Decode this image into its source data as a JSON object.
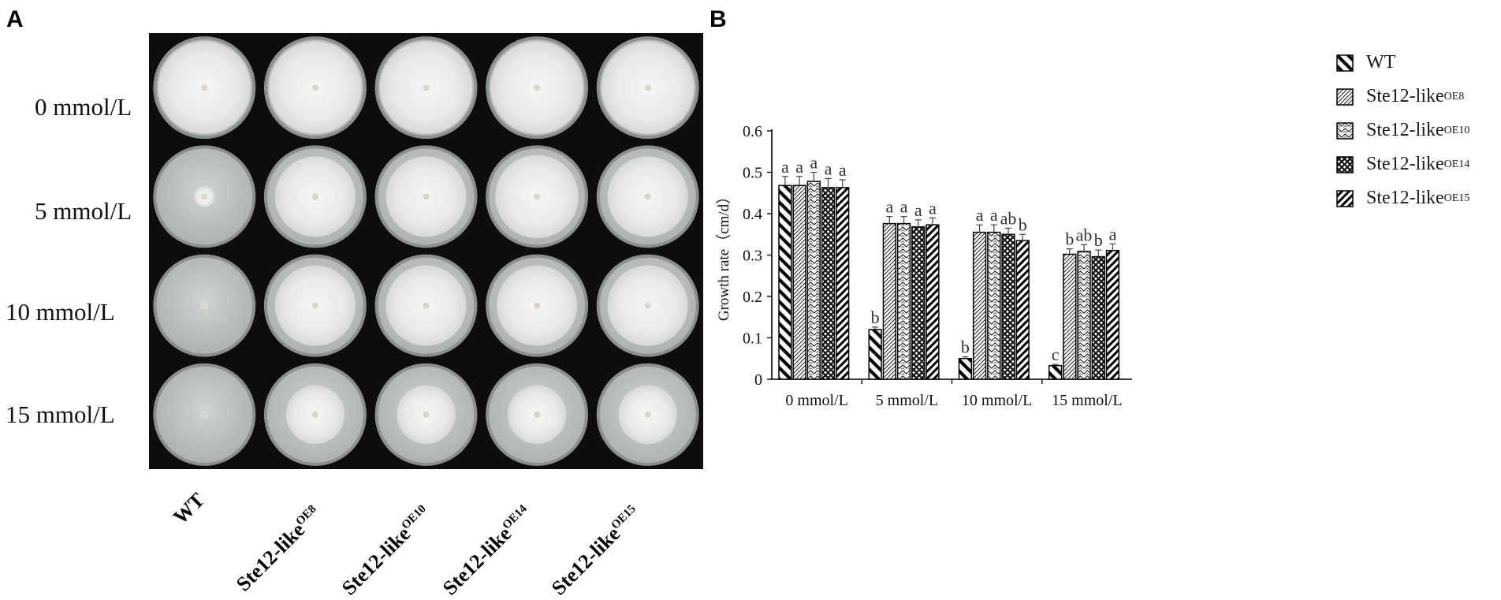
{
  "panelA": {
    "letter": "A",
    "rows": [
      "0 mmol/L",
      "5 mmol/L",
      "10 mmol/L",
      "15 mmol/L"
    ],
    "columns": [
      {
        "base": "WT",
        "sup": ""
      },
      {
        "base": "Ste12-like",
        "sup": "OE8"
      },
      {
        "base": "Ste12-like",
        "sup": "OE10"
      },
      {
        "base": "Ste12-like",
        "sup": "OE14"
      },
      {
        "base": "Ste12-like",
        "sup": "OE15"
      }
    ],
    "colony_cover_fraction": [
      [
        0.98,
        0.98,
        0.98,
        0.98,
        0.98
      ],
      [
        0.22,
        0.85,
        0.85,
        0.88,
        0.85
      ],
      [
        0.08,
        0.85,
        0.85,
        0.85,
        0.85
      ],
      [
        0.08,
        0.62,
        0.62,
        0.62,
        0.62
      ]
    ],
    "colors": {
      "background": "#0d0d0d",
      "agar": "#c4c8c7",
      "mycelium": "#ecedea"
    }
  },
  "chart_data": {
    "letter": "B",
    "type": "bar",
    "ylabel": "Growth rate（cm/d）",
    "ylim": [
      0,
      0.6
    ],
    "yticks": [
      "0",
      "0.1",
      "0.2",
      "0.3",
      "0.4",
      "0.5",
      "0.6"
    ],
    "categories": [
      "0 mmol/L",
      "5 mmol/L",
      "10 mmol/L",
      "15 mmol/L"
    ],
    "legend_position": "top-right",
    "series": [
      {
        "name": "WT",
        "sup": "",
        "pattern": "diag-back",
        "values": [
          0.468,
          0.12,
          0.05,
          0.033
        ],
        "errors": [
          0.022,
          0.006,
          0.004,
          0.003
        ],
        "letters": [
          "a",
          "b",
          "b",
          "c"
        ]
      },
      {
        "name": "Ste12-like",
        "sup": "OE8",
        "pattern": "diag-fine",
        "values": [
          0.468,
          0.376,
          0.355,
          0.302
        ],
        "errors": [
          0.022,
          0.017,
          0.018,
          0.013
        ],
        "letters": [
          "a",
          "a",
          "a",
          "b"
        ]
      },
      {
        "name": "Ste12-like",
        "sup": "OE10",
        "pattern": "wave",
        "values": [
          0.478,
          0.376,
          0.355,
          0.309
        ],
        "errors": [
          0.022,
          0.017,
          0.018,
          0.016
        ],
        "letters": [
          "a",
          "a",
          "a",
          "ab"
        ]
      },
      {
        "name": "Ste12-like",
        "sup": "OE14",
        "pattern": "cross",
        "values": [
          0.463,
          0.368,
          0.35,
          0.296
        ],
        "errors": [
          0.022,
          0.017,
          0.015,
          0.016
        ],
        "letters": [
          "a",
          "a",
          "ab",
          "b"
        ]
      },
      {
        "name": "Ste12-like",
        "sup": "OE15",
        "pattern": "diag-bold",
        "values": [
          0.463,
          0.373,
          0.335,
          0.311
        ],
        "errors": [
          0.019,
          0.017,
          0.015,
          0.016
        ],
        "letters": [
          "a",
          "a",
          "b",
          "a"
        ]
      }
    ]
  }
}
